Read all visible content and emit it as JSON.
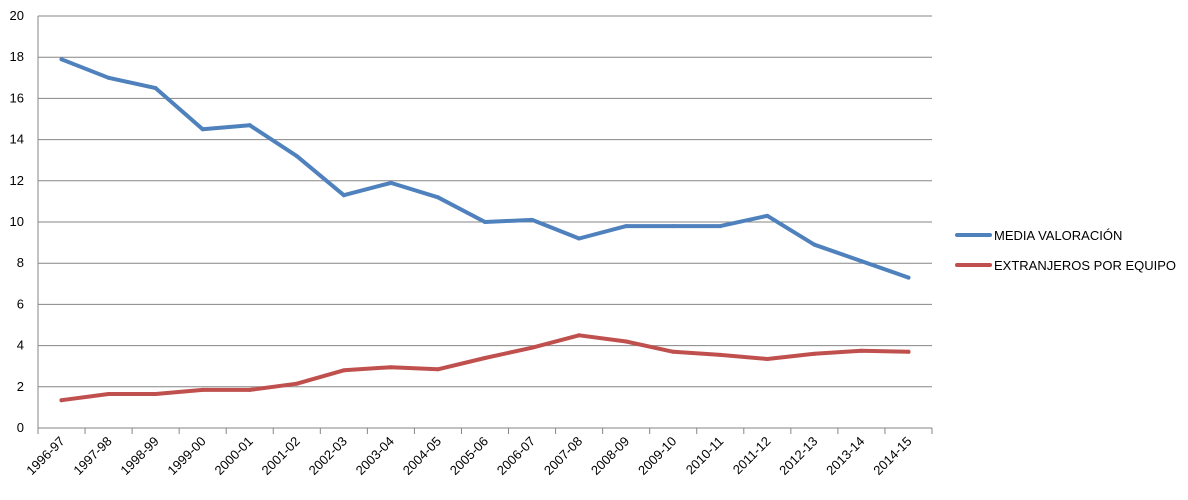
{
  "chart_data": {
    "type": "line",
    "title": "",
    "xlabel": "",
    "ylabel": "",
    "categories": [
      "1996-97",
      "1997-98",
      "1998-99",
      "1999-00",
      "2000-01",
      "2001-02",
      "2002-03",
      "2003-04",
      "2004-05",
      "2005-06",
      "2006-07",
      "2007-08",
      "2008-09",
      "2009-10",
      "2010-11",
      "2011-12",
      "2012-13",
      "2013-14",
      "2014-15"
    ],
    "ylim": [
      0,
      20
    ],
    "yticks": [
      0,
      2,
      4,
      6,
      8,
      10,
      12,
      14,
      16,
      18,
      20
    ],
    "grid": true,
    "legend_position": "right",
    "series": [
      {
        "name": "MEDIA VALORACIÓN",
        "color": "#4f81bd",
        "values": [
          17.9,
          17.0,
          16.5,
          14.5,
          14.7,
          13.2,
          11.3,
          11.9,
          11.2,
          10.0,
          10.1,
          9.2,
          9.8,
          9.8,
          9.8,
          10.3,
          8.9,
          8.1,
          7.3
        ]
      },
      {
        "name": "EXTRANJEROS POR EQUIPO",
        "color": "#c0504d",
        "values": [
          1.35,
          1.65,
          1.65,
          1.85,
          1.85,
          2.15,
          2.8,
          2.95,
          2.85,
          3.4,
          3.9,
          4.5,
          4.2,
          3.7,
          3.55,
          3.35,
          3.6,
          3.75,
          3.7
        ]
      }
    ]
  }
}
